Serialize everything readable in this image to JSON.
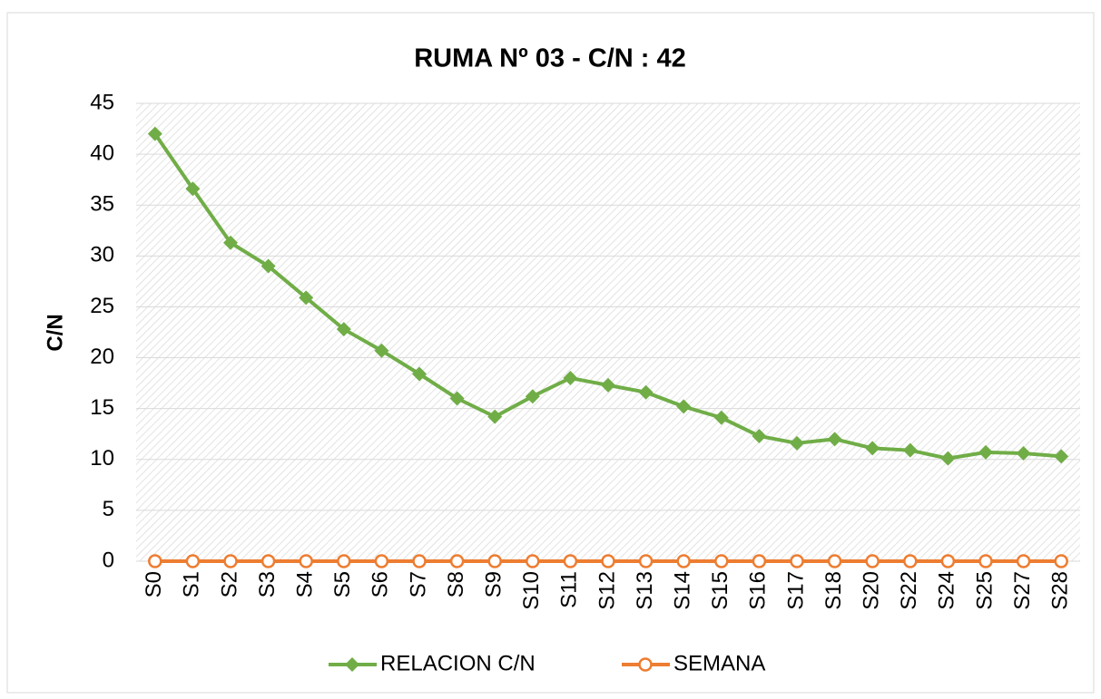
{
  "chart_data": {
    "type": "line",
    "title": "RUMA Nº 03 - C/N : 42",
    "y_label": "C/N",
    "categories": [
      "S0",
      "S1",
      "S2",
      "S3",
      "S4",
      "S5",
      "S6",
      "S7",
      "S8",
      "S9",
      "S10",
      "S11",
      "S12",
      "S13",
      "S14",
      "S15",
      "S16",
      "S17",
      "S18",
      "S20",
      "S22",
      "S24",
      "S25",
      "S27",
      "S28"
    ],
    "series": [
      {
        "name": "RELACION C/N",
        "color": "#70ad47",
        "marker": "diamond",
        "values": [
          42,
          36.6,
          31.3,
          29,
          25.9,
          22.8,
          20.7,
          18.4,
          16,
          14.2,
          16.2,
          18,
          17.3,
          16.6,
          15.2,
          14.1,
          12.3,
          11.6,
          12,
          11.1,
          10.9,
          10.1,
          10.7,
          10.6,
          10.3
        ]
      },
      {
        "name": "SEMANA",
        "color": "#ed7d31",
        "marker": "circle",
        "values": [
          0,
          0,
          0,
          0,
          0,
          0,
          0,
          0,
          0,
          0,
          0,
          0,
          0,
          0,
          0,
          0,
          0,
          0,
          0,
          0,
          0,
          0,
          0,
          0,
          0
        ]
      }
    ],
    "ylim": [
      0,
      45
    ],
    "yticks": [
      0,
      5,
      10,
      15,
      20,
      25,
      30,
      35,
      40,
      45
    ],
    "grid": true,
    "legend": "bottom"
  }
}
